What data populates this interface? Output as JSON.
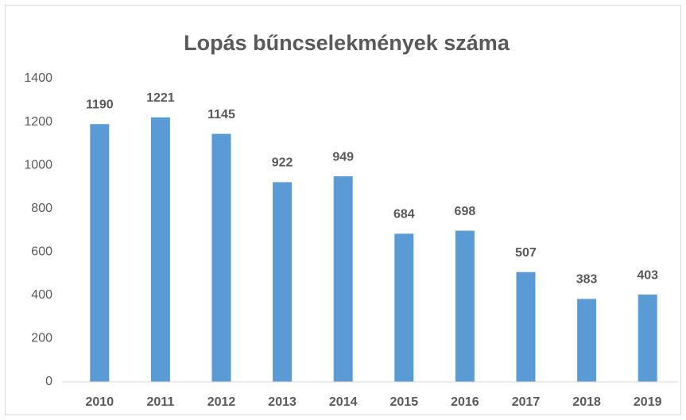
{
  "chart_data": {
    "type": "bar",
    "title": "Lopás bűncselekmények száma",
    "categories": [
      "2010",
      "2011",
      "2012",
      "2013",
      "2014",
      "2015",
      "2016",
      "2017",
      "2018",
      "2019"
    ],
    "values": [
      1190,
      1221,
      1145,
      922,
      949,
      684,
      698,
      507,
      383,
      403
    ],
    "color": "#5b9bd5",
    "ylim": [
      0,
      1400
    ],
    "yticks": [
      0,
      200,
      400,
      600,
      800,
      1000,
      1200,
      1400
    ],
    "grid": false,
    "data_labels": true
  }
}
